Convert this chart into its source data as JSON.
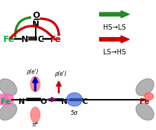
{
  "top_panel": {
    "molecule_text": "Fe—N≡C—Fe",
    "no_text": "N",
    "o_text": "O",
    "fe_left_color": "#00aa44",
    "fe_right_color": "#aa0000",
    "bond_color": "#000000",
    "green_arrow_color": "#228B22",
    "red_arrow_color": "#CC0000",
    "legend_green_arrow": "HS→LS",
    "legend_red_arrow": "LS→HS"
  },
  "bottom_panel": {
    "fe_left_color": "#00aa44",
    "fe_right_color": "#aa0000",
    "orbital_pink_color": "#FF69B4",
    "orbital_gray_color": "#808080",
    "orbital_blue_color": "#4169E1",
    "orbital_red_color": "#CC0000",
    "arrow_blue_color": "#0000CC",
    "arrow_red_color": "#CC0000",
    "arrow_purple_color": "#8B008B",
    "pi_label": "π*",
    "sigma_label": "5σ",
    "rho_label": "ρ(e')"
  },
  "bg_color": "#FFFFFF"
}
